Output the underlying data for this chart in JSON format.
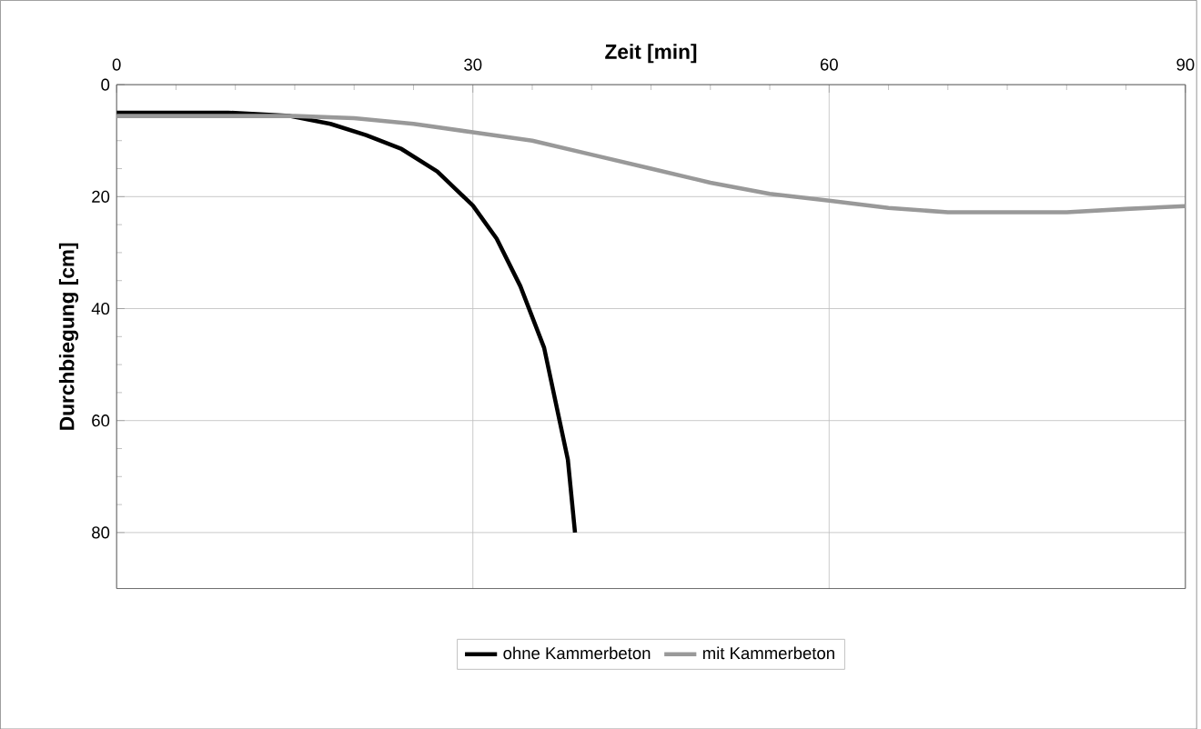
{
  "chart_data": {
    "type": "line",
    "xlabel": "Zeit [min]",
    "ylabel": "Durchbiegung [cm]",
    "xlim": [
      0,
      90
    ],
    "xticks": [
      0,
      30,
      60,
      90
    ],
    "ylim": [
      90,
      0
    ],
    "yticks": [
      0,
      20,
      40,
      60,
      80
    ],
    "grid": true,
    "legend": "bottom",
    "line_style": "solid",
    "marker": "none",
    "series": [
      {
        "name": "ohne Kammerbeton",
        "color": "#000000",
        "x": [
          0,
          9.4,
          14.6,
          18,
          21,
          24,
          27,
          30,
          32,
          34,
          36,
          37,
          38,
          38.6
        ],
        "values": [
          5,
          5,
          5.6,
          7,
          9,
          11.5,
          15.5,
          21.6,
          27.5,
          36,
          47,
          57,
          67,
          80
        ]
      },
      {
        "name": "mit Kammerbeton",
        "color": "#999999",
        "x": [
          0,
          15,
          20,
          25,
          30,
          35,
          40,
          45,
          50,
          55,
          60,
          65,
          70,
          75,
          80,
          85,
          90
        ],
        "values": [
          5.6,
          5.6,
          6,
          7,
          8.5,
          10,
          12.5,
          15,
          17.5,
          19.5,
          20.7,
          22,
          22.8,
          22.8,
          22.8,
          22.2,
          21.7
        ]
      }
    ]
  }
}
